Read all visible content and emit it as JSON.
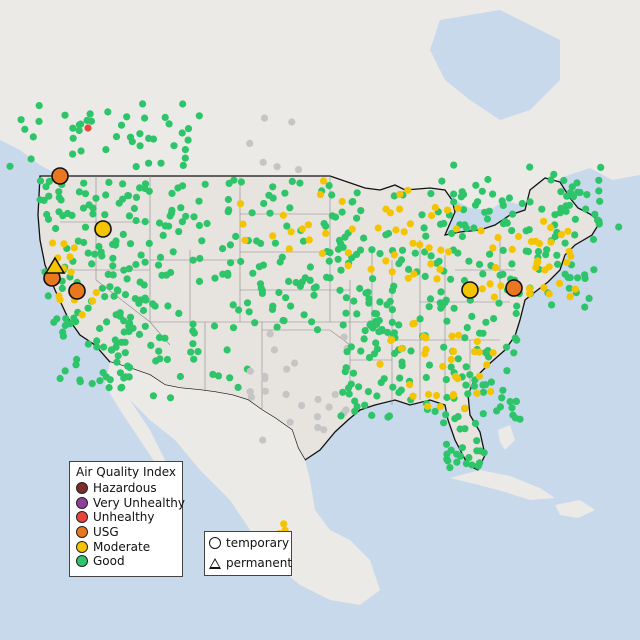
{
  "legend": {
    "title": "Air Quality Index",
    "categories": [
      {
        "label": "Hazardous",
        "color": "#7e2b2b"
      },
      {
        "label": "Very Unhealthy",
        "color": "#8f3f97"
      },
      {
        "label": "Unhealthy",
        "color": "#e8463a"
      },
      {
        "label": "USG",
        "color": "#e8771f"
      },
      {
        "label": "Moderate",
        "color": "#f5c400"
      },
      {
        "label": "Good",
        "color": "#2ec46a"
      }
    ]
  },
  "monitor_types": {
    "temporary": "temporary",
    "permanent": "permanent"
  },
  "colors": {
    "ocean": "#c7d9ea",
    "land": "#ece9e4",
    "us_land": "#e6e2dd",
    "no_data": "#c5c5c5"
  }
}
